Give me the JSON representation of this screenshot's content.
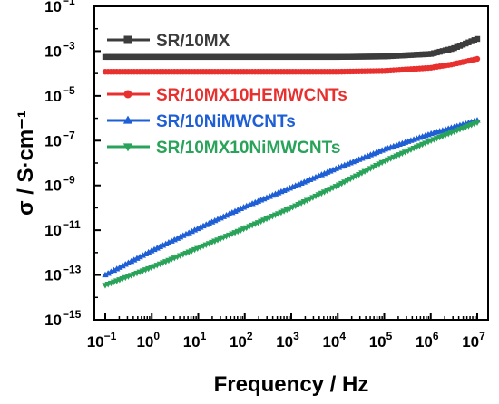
{
  "chart_data": {
    "type": "line",
    "xlabel": "Frequency / Hz",
    "ylabel": "σ / S·cm⁻¹",
    "x_scale": "log",
    "y_scale": "log",
    "xlim": [
      0.1,
      10000000
    ],
    "ylim": [
      1e-15,
      0.1
    ],
    "grid": false,
    "legend_position": "top-left",
    "x_ticks": [
      {
        "exp": "−1",
        "value": 0.1
      },
      {
        "exp": "0",
        "value": 1
      },
      {
        "exp": "1",
        "value": 10
      },
      {
        "exp": "2",
        "value": 100
      },
      {
        "exp": "3",
        "value": 1000
      },
      {
        "exp": "4",
        "value": 10000
      },
      {
        "exp": "5",
        "value": 100000
      },
      {
        "exp": "6",
        "value": 1000000
      },
      {
        "exp": "7",
        "value": 10000000
      }
    ],
    "y_ticks": [
      {
        "exp": "−15",
        "value": 1e-15
      },
      {
        "exp": "−13",
        "value": 1e-13
      },
      {
        "exp": "−11",
        "value": 1e-11
      },
      {
        "exp": "−9",
        "value": 1e-09
      },
      {
        "exp": "−7",
        "value": 1e-07
      },
      {
        "exp": "−5",
        "value": 1e-05
      },
      {
        "exp": "−3",
        "value": 0.001
      },
      {
        "exp": "−1",
        "value": 0.1
      }
    ],
    "tick_base": "10",
    "series": [
      {
        "name": "SR/10MX",
        "color": "#3c3c3c",
        "marker": "square",
        "x": [
          0.1,
          1,
          10,
          100,
          1000,
          10000,
          100000,
          1000000,
          3000000,
          10000000
        ],
        "y": [
          0.00055,
          0.00055,
          0.00055,
          0.00055,
          0.00055,
          0.00055,
          0.00058,
          0.00075,
          0.0013,
          0.0035
        ]
      },
      {
        "name": "SR/10MX10HEMWCNTs",
        "color": "#e8312f",
        "marker": "circle",
        "x": [
          0.1,
          1,
          10,
          100,
          1000,
          10000,
          100000,
          1000000,
          3000000,
          10000000
        ],
        "y": [
          0.00012,
          0.00012,
          0.00012,
          0.00012,
          0.00012,
          0.00012,
          0.00013,
          0.00018,
          0.00026,
          0.00045
        ]
      },
      {
        "name": "SR/10NiMWCNTs",
        "color": "#1f5fd6",
        "marker": "triangle-up",
        "x": [
          0.1,
          1,
          10,
          100,
          1000,
          10000,
          100000,
          1000000,
          10000000
        ],
        "y": [
          1e-13,
          1.2e-12,
          1.2e-11,
          1.1e-10,
          8e-10,
          6e-09,
          4e-08,
          2e-07,
          8e-07
        ]
      },
      {
        "name": "SR/10MX10NiMWCNTs",
        "color": "#2aa35a",
        "marker": "triangle-down",
        "x": [
          0.1,
          1,
          10,
          100,
          1000,
          10000,
          100000,
          1000000,
          10000000
        ],
        "y": [
          3.5e-14,
          2.2e-13,
          1.6e-12,
          1.2e-11,
          1e-10,
          1e-09,
          1.2e-08,
          1e-07,
          6.5e-07
        ]
      }
    ]
  }
}
